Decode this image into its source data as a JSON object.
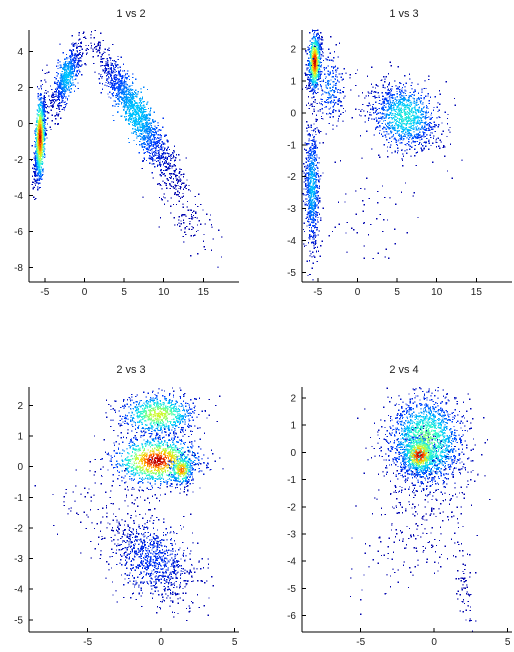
{
  "chart_data": [
    {
      "type": "scatter",
      "title": "1 vs 2",
      "xlim": [
        -7,
        19.5
      ],
      "ylim": [
        -8.8,
        5.2
      ],
      "xticks": [
        -5,
        0,
        5,
        10,
        15
      ],
      "yticks": [
        -8,
        -6,
        -4,
        -2,
        0,
        2,
        4
      ],
      "density_coloring": true,
      "clusters": [
        {
          "cx": -5.6,
          "cy": -0.8,
          "sx": 0.35,
          "sy": 1.2,
          "rho": 0.55,
          "n": 1100,
          "peak": 1.0
        },
        {
          "cx": -2.2,
          "cy": 2.6,
          "sx": 1.0,
          "sy": 1.0,
          "rho": 0.75,
          "n": 650,
          "peak": 0.35
        },
        {
          "cx": 6.5,
          "cy": 0.6,
          "sx": 2.6,
          "sy": 1.9,
          "rho": -0.93,
          "n": 1500,
          "peak": 0.35
        },
        {
          "cx": 12.5,
          "cy": -4.8,
          "sx": 2.3,
          "sy": 1.3,
          "rho": -0.75,
          "n": 130,
          "peak": 0.0
        }
      ]
    },
    {
      "type": "scatter",
      "title": "1 vs 3",
      "xlim": [
        -7,
        19.5
      ],
      "ylim": [
        -5.3,
        2.6
      ],
      "xticks": [
        -5,
        0,
        5,
        10,
        15
      ],
      "yticks": [
        -5,
        -4,
        -3,
        -2,
        -1,
        0,
        1,
        2
      ],
      "density_coloring": true,
      "clusters": [
        {
          "cx": -5.4,
          "cy": 1.6,
          "sx": 0.4,
          "sy": 0.45,
          "rho": 0.2,
          "n": 800,
          "peak": 1.0
        },
        {
          "cx": -3.5,
          "cy": 0.8,
          "sx": 1.1,
          "sy": 0.6,
          "rho": 0.0,
          "n": 250,
          "peak": 0.25
        },
        {
          "cx": -5.7,
          "cy": -2.3,
          "sx": 0.5,
          "sy": 1.0,
          "rho": 0.0,
          "n": 700,
          "peak": 0.35
        },
        {
          "cx": 6.0,
          "cy": -0.1,
          "sx": 2.2,
          "sy": 0.55,
          "rho": -0.3,
          "n": 1100,
          "peak": 0.45
        },
        {
          "cx": 2.0,
          "cy": -3.2,
          "sx": 3.5,
          "sy": 1.0,
          "rho": 0.0,
          "n": 60,
          "peak": 0.0
        }
      ]
    },
    {
      "type": "scatter",
      "title": "2 vs 3",
      "xlim": [
        -9,
        5.3
      ],
      "ylim": [
        -5.4,
        2.6
      ],
      "xticks": [
        -5,
        0,
        5
      ],
      "yticks": [
        -5,
        -4,
        -3,
        -2,
        -1,
        0,
        1,
        2
      ],
      "density_coloring": true,
      "clusters": [
        {
          "cx": -0.2,
          "cy": 1.7,
          "sx": 1.3,
          "sy": 0.35,
          "rho": 0.0,
          "n": 800,
          "peak": 0.7
        },
        {
          "cx": -0.3,
          "cy": 0.2,
          "sx": 1.5,
          "sy": 0.4,
          "rho": 0.0,
          "n": 1100,
          "peak": 1.0
        },
        {
          "cx": 1.4,
          "cy": -0.1,
          "sx": 0.4,
          "sy": 0.25,
          "rho": 0.0,
          "n": 250,
          "peak": 0.9
        },
        {
          "cx": -0.6,
          "cy": -3.0,
          "sx": 1.5,
          "sy": 0.7,
          "rho": -0.4,
          "n": 900,
          "peak": 0.15
        },
        {
          "cx": -4.0,
          "cy": -1.2,
          "sx": 2.2,
          "sy": 0.7,
          "rho": 0.0,
          "n": 90,
          "peak": 0.0
        }
      ]
    },
    {
      "type": "scatter",
      "title": "2 vs 4",
      "xlim": [
        -9,
        5.3
      ],
      "ylim": [
        -6.6,
        2.4
      ],
      "xticks": [
        -5,
        0,
        5
      ],
      "yticks": [
        -6,
        -5,
        -4,
        -3,
        -2,
        -1,
        0,
        1,
        2
      ],
      "density_coloring": true,
      "clusters": [
        {
          "cx": -0.6,
          "cy": 0.4,
          "sx": 1.3,
          "sy": 0.85,
          "rho": 0.0,
          "n": 1800,
          "peak": 0.6
        },
        {
          "cx": -1.0,
          "cy": -0.1,
          "sx": 0.6,
          "sy": 0.35,
          "rho": 0.0,
          "n": 500,
          "peak": 1.0
        },
        {
          "cx": -1.0,
          "cy": -2.5,
          "sx": 1.8,
          "sy": 1.2,
          "rho": 0.3,
          "n": 250,
          "peak": 0.0
        },
        {
          "cx": 2.1,
          "cy": -5.0,
          "sx": 0.35,
          "sy": 0.8,
          "rho": -0.5,
          "n": 70,
          "peak": 0.0
        }
      ]
    }
  ]
}
